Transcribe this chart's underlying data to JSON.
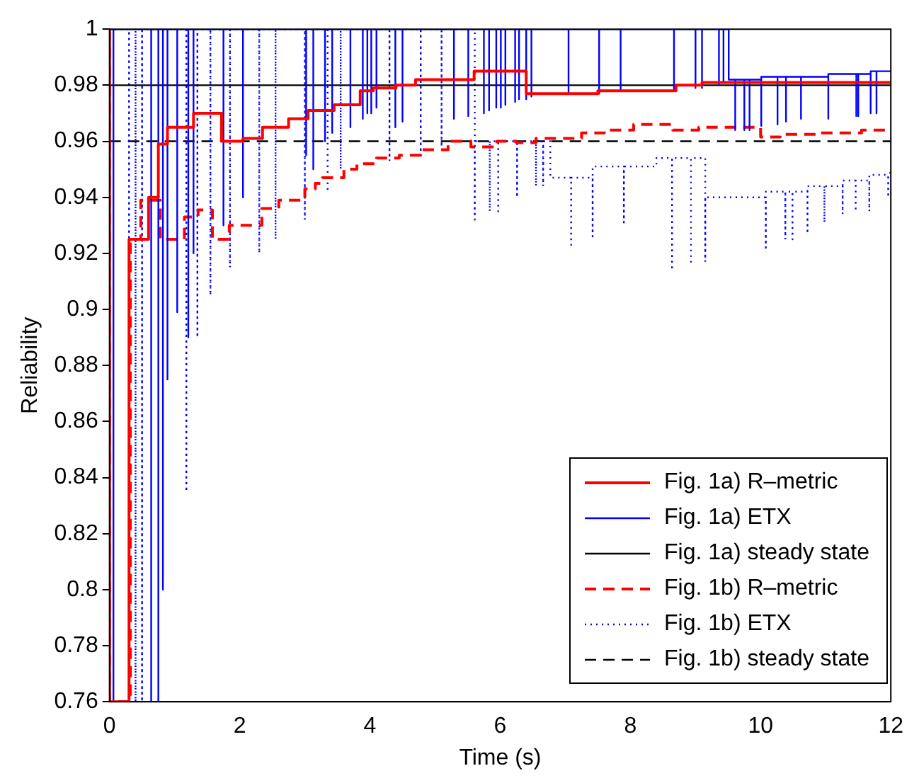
{
  "chart_data": {
    "type": "line",
    "xlabel": "Time (s)",
    "ylabel": "Reliability",
    "xlim": [
      0,
      12
    ],
    "xticks": [
      0,
      2,
      4,
      6,
      8,
      10,
      12
    ],
    "ylim": [
      0.76,
      1
    ],
    "yticks": [
      0.76,
      0.78,
      0.8,
      0.82,
      0.84,
      0.86,
      0.88,
      0.9,
      0.92,
      0.94,
      0.96,
      0.98,
      1
    ],
    "legend": "bottom right",
    "series": [
      {
        "name": "Fig. 1a) R–metric",
        "type": "step",
        "color": "#ff0000",
        "line_style": "solid",
        "x": [
          0,
          0.3,
          0.6,
          0.75,
          0.89,
          1.29,
          1.72,
          2.05,
          2.35,
          2.75,
          3.05,
          3.45,
          3.85,
          4.05,
          4.4,
          4.7,
          5.6,
          6.4,
          7.5,
          8.7,
          9.1,
          9.5,
          12
        ],
        "values": [
          1,
          0.76,
          0.925,
          0.94,
          0.959,
          0.965,
          0.97,
          0.96,
          0.961,
          0.965,
          0.968,
          0.971,
          0.973,
          0.978,
          0.979,
          0.98,
          0.982,
          0.985,
          0.977,
          0.978,
          0.98,
          0.981,
          0.981
        ]
      },
      {
        "name": "Fig. 1a) ETX",
        "type": "line",
        "color": "#0000ff",
        "line_style": "solid",
        "x": [
          0,
          0.06,
          0.06,
          0.06,
          0.64,
          0.64,
          0.64,
          0.75,
          0.75,
          0.75,
          0.82,
          0.82,
          0.82,
          0.89,
          0.89,
          0.89,
          1.04,
          1.04,
          1.04,
          1.21,
          1.21,
          1.21,
          1.29,
          1.29,
          1.29,
          1.75,
          1.75,
          1.75,
          2.05,
          2.05,
          2.05,
          3.02,
          3.02,
          3.02,
          3.13,
          3.13,
          3.13,
          3.31,
          3.31,
          3.31,
          3.42,
          3.42,
          3.42,
          3.7,
          3.7,
          3.7,
          3.89,
          3.89,
          3.89,
          3.96,
          3.96,
          3.96,
          4.02,
          4.02,
          4.02,
          4.1,
          4.1,
          4.1,
          4.39,
          4.39,
          4.39,
          4.5,
          4.5,
          4.5,
          5.29,
          5.29,
          5.29,
          5.51,
          5.51,
          5.51,
          5.75,
          5.75,
          5.75,
          5.83,
          5.83,
          5.83,
          5.94,
          5.94,
          5.94,
          6.01,
          6.01,
          6.01,
          6.08,
          6.08,
          6.08,
          6.23,
          6.23,
          6.23,
          6.29,
          6.29,
          6.29,
          6.4,
          6.4,
          6.4,
          6.48,
          6.48,
          6.48,
          7.05,
          7.05,
          7.05,
          7.52,
          7.52,
          7.52,
          7.85,
          7.85,
          7.85,
          8.67,
          8.67,
          8.67,
          9,
          9,
          9,
          9.1,
          9.1,
          9.1,
          9.36,
          9.36,
          9.36,
          9.43,
          9.43,
          9.43,
          9.51,
          9.51,
          9.61,
          9.61,
          9.61,
          9.75,
          9.75,
          9.75,
          9.83,
          9.83,
          9.83,
          10.01,
          10.01,
          10.01,
          10.26,
          10.26,
          10.26,
          10.39,
          10.39,
          10.39,
          10.62,
          10.62,
          10.62,
          11.04,
          11.04,
          11.04,
          11.47,
          11.47,
          11.47,
          11.5,
          11.5,
          11.5,
          11.69,
          11.69,
          11.69,
          11.78,
          11.78,
          11.78,
          12
        ],
        "values": [
          1,
          1,
          0.76,
          1,
          1,
          0.76,
          1,
          1,
          0.76,
          1,
          1,
          0.8,
          1,
          1,
          0.875,
          1,
          1,
          0.899,
          1,
          1,
          0.89,
          1,
          1,
          0.92,
          1,
          1,
          0.93,
          1,
          1,
          0.94,
          1,
          1,
          0.955,
          1,
          1,
          0.95,
          1,
          1,
          0.96,
          1,
          1,
          0.963,
          1,
          1,
          0.965,
          1,
          1,
          0.968,
          1,
          1,
          0.97,
          1,
          1,
          0.97,
          1,
          1,
          0.972,
          1,
          1,
          0.965,
          1,
          1,
          0.967,
          1,
          1,
          0.968,
          1,
          1,
          0.969,
          1,
          1,
          0.97,
          1,
          1,
          0.971,
          1,
          1,
          0.972,
          1,
          1,
          0.972,
          1,
          1,
          0.973,
          1,
          1,
          0.974,
          1,
          1,
          0.975,
          1,
          1,
          0.975,
          1,
          1,
          0.976,
          1,
          1,
          0.977,
          1,
          1,
          0.977,
          1,
          1,
          0.9785,
          1,
          1,
          0.978,
          1,
          1,
          0.979,
          1,
          1,
          0.979,
          1,
          1,
          0.98,
          1,
          1,
          0.981,
          1,
          1,
          0.982,
          0.982,
          0.964,
          0.982,
          0.982,
          0.964,
          0.982,
          0.982,
          0.964,
          0.982,
          0.982,
          0.9655,
          0.983,
          0.983,
          0.966,
          0.983,
          0.983,
          0.967,
          0.983,
          0.983,
          0.968,
          0.983,
          0.983,
          0.968,
          0.984,
          0.984,
          0.969,
          0.984,
          0.984,
          0.969,
          0.984,
          0.984,
          0.97,
          0.985,
          0.985,
          0.97,
          0.985,
          0.985
        ]
      },
      {
        "name": "Fig. 1a) steady state",
        "type": "line",
        "color": "#000000",
        "line_style": "solid",
        "x": [
          0,
          12
        ],
        "values": [
          0.98,
          0.98
        ]
      },
      {
        "name": "Fig. 1b) R–metric",
        "type": "step",
        "color": "#ff0000",
        "line_style": "dashed",
        "x": [
          0,
          0.32,
          0.48,
          0.78,
          1.15,
          1.36,
          1.58,
          1.84,
          2.05,
          2.34,
          2.6,
          2.77,
          3,
          3.16,
          3.27,
          3.6,
          3.8,
          4.1,
          4.45,
          4.78,
          5.2,
          5.55,
          5.95,
          6.25,
          6.55,
          7.25,
          7.6,
          8.05,
          8.65,
          9.05,
          10,
          10.3,
          10.85,
          11.55,
          11.85,
          12
        ],
        "values": [
          1,
          0.76,
          0.925,
          0.939,
          0.925,
          0.933,
          0.9355,
          0.925,
          0.93,
          0.93,
          0.936,
          0.939,
          0.939,
          0.943,
          0.945,
          0.947,
          0.95,
          0.952,
          0.954,
          0.955,
          0.957,
          0.96,
          0.958,
          0.96,
          0.9595,
          0.961,
          0.963,
          0.964,
          0.966,
          0.964,
          0.965,
          0.9615,
          0.9625,
          0.963,
          0.964,
          0.964
        ]
      },
      {
        "name": "Fig. 1b) ETX",
        "type": "line",
        "color": "#0000ff",
        "line_style": "dotted",
        "x": [
          0,
          0.3,
          0.3,
          0.3,
          0.4,
          0.4,
          0.4,
          0.5,
          0.5,
          0.5,
          1.18,
          1.18,
          1.18,
          1.35,
          1.35,
          1.35,
          1.55,
          1.55,
          1.55,
          1.85,
          1.85,
          1.85,
          2.3,
          2.3,
          2.3,
          2.55,
          2.55,
          2.55,
          3,
          3,
          3,
          3.35,
          3.35,
          3.35,
          3.55,
          3.55,
          3.55,
          4.3,
          4.3,
          4.3,
          4.78,
          4.78,
          4.78,
          5.1,
          5.1,
          5.1,
          5.61,
          5.61,
          5.61,
          5.84,
          5.84,
          5.84,
          5.97,
          5.97,
          5.97,
          6.26,
          6.26,
          6.26,
          6.55,
          6.55,
          6.55,
          6.66,
          6.66,
          6.66,
          6.77,
          6.77,
          7.09,
          7.09,
          7.09,
          7.42,
          7.42,
          7.42,
          7.9,
          7.9,
          7.9,
          8.4,
          8.4,
          8.64,
          8.64,
          8.64,
          8.93,
          8.93,
          8.93,
          9.15,
          9.15,
          9.15,
          10.08,
          10.08,
          10.08,
          10.38,
          10.38,
          10.38,
          10.49,
          10.49,
          10.49,
          10.72,
          10.72,
          10.72,
          10.98,
          10.98,
          10.98,
          11.26,
          11.26,
          11.26,
          11.46,
          11.46,
          11.46,
          11.67,
          11.67,
          11.67,
          11.96,
          11.96,
          11.96,
          12
        ],
        "values": [
          1,
          1,
          0.76,
          1,
          1,
          0.76,
          1,
          1,
          0.76,
          1,
          1,
          0.835,
          1,
          1,
          0.89,
          1,
          1,
          0.905,
          1,
          1,
          0.915,
          1,
          1,
          0.92,
          1,
          1,
          0.925,
          1,
          1,
          0.932,
          1,
          1,
          0.942,
          1,
          1,
          0.95,
          1,
          1,
          0.953,
          1,
          1,
          0.955,
          1,
          1,
          0.958,
          1,
          1,
          0.932,
          0.96,
          0.96,
          0.935,
          0.96,
          0.96,
          0.935,
          0.96,
          0.96,
          0.94,
          0.96,
          0.96,
          0.944,
          0.96,
          0.96,
          0.944,
          0.96,
          0.96,
          0.947,
          0.947,
          0.923,
          0.947,
          0.947,
          0.926,
          0.951,
          0.951,
          0.931,
          0.951,
          0.951,
          0.954,
          0.954,
          0.914,
          0.954,
          0.954,
          0.917,
          0.954,
          0.954,
          0.917,
          0.94,
          0.94,
          0.922,
          0.942,
          0.942,
          0.925,
          0.942,
          0.942,
          0.925,
          0.942,
          0.942,
          0.927,
          0.944,
          0.944,
          0.931,
          0.944,
          0.944,
          0.934,
          0.946,
          0.946,
          0.935,
          0.946,
          0.946,
          0.935,
          0.948,
          0.948,
          0.94,
          0.948,
          0.949
        ]
      },
      {
        "name": "Fig. 1b) steady state",
        "type": "line",
        "color": "#000000",
        "line_style": "dashed",
        "x": [
          0,
          12
        ],
        "values": [
          0.96,
          0.96
        ]
      }
    ]
  }
}
